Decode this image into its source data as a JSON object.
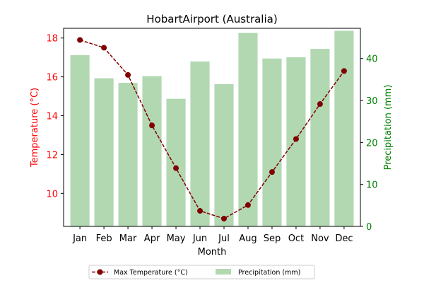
{
  "chart_data": {
    "type": "bar",
    "title": "HobartAirport (Australia)",
    "xlabel": "Month",
    "ylabel_left": "Temperature (°C)",
    "ylabel_right": "Precipitation (mm)",
    "categories": [
      "Jan",
      "Feb",
      "Mar",
      "Apr",
      "May",
      "Jun",
      "Jul",
      "Aug",
      "Sep",
      "Oct",
      "Nov",
      "Dec"
    ],
    "series": [
      {
        "name": "Max Temperature (°C)",
        "type": "line",
        "axis": "left",
        "values": [
          17.9,
          17.5,
          16.1,
          13.5,
          11.3,
          9.1,
          8.7,
          9.4,
          11.1,
          12.8,
          14.6,
          16.3
        ]
      },
      {
        "name": "Precipitation (mm)",
        "type": "bar",
        "axis": "right",
        "values": [
          40.8,
          35.3,
          34.2,
          35.8,
          30.4,
          39.3,
          33.9,
          46.1,
          40.0,
          40.3,
          42.3,
          46.6
        ]
      }
    ],
    "ylim_left": [
      8.3,
      18.5
    ],
    "yticks_left": [
      10,
      12,
      14,
      16,
      18
    ],
    "ylim_right": [
      0,
      47.2
    ],
    "yticks_right": [
      0,
      10,
      20,
      30,
      40
    ],
    "grid": false,
    "legend_position": "bottom-center",
    "colors": {
      "line": "#800000",
      "bars": "#b2d8b2",
      "left_axis": "#ff0000",
      "right_axis": "#008000",
      "text": "#000000"
    }
  }
}
